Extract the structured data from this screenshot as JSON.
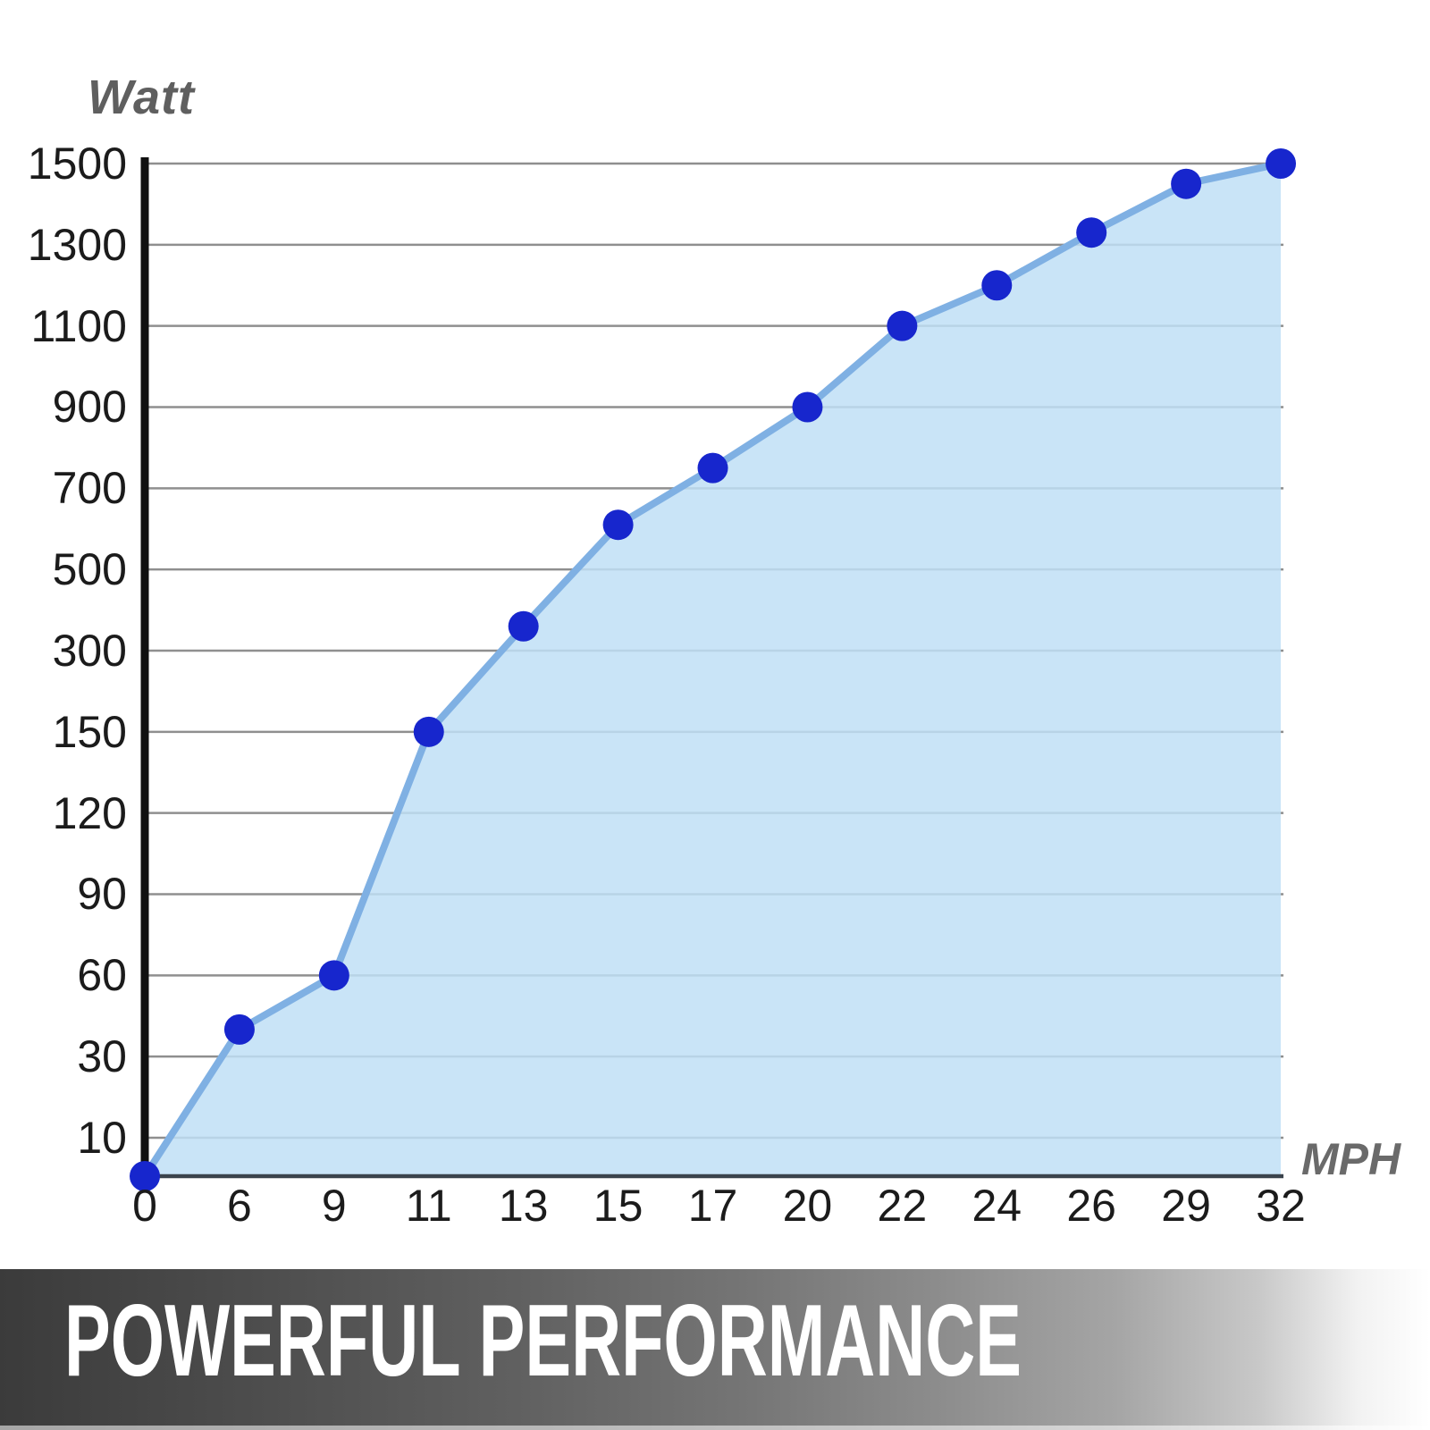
{
  "chart_data": {
    "type": "area",
    "title": "",
    "xlabel": "MPH",
    "ylabel": "Watt",
    "x_ticks": [
      "0",
      "6",
      "9",
      "11",
      "13",
      "15",
      "17",
      "20",
      "22",
      "24",
      "26",
      "29",
      "32"
    ],
    "y_ticks": [
      "1500",
      "1300",
      "1100",
      "900",
      "700",
      "500",
      "300",
      "150",
      "120",
      "90",
      "60",
      "30",
      "10"
    ],
    "points": [
      {
        "mph": 0,
        "watt": 0
      },
      {
        "mph": 6,
        "watt": 40
      },
      {
        "mph": 9,
        "watt": 60
      },
      {
        "mph": 11,
        "watt": 150
      },
      {
        "mph": 13,
        "watt": 360
      },
      {
        "mph": 15,
        "watt": 610
      },
      {
        "mph": 17,
        "watt": 750
      },
      {
        "mph": 20,
        "watt": 900
      },
      {
        "mph": 22,
        "watt": 1100
      },
      {
        "mph": 24,
        "watt": 1200
      },
      {
        "mph": 26,
        "watt": 1330
      },
      {
        "mph": 29,
        "watt": 1450
      },
      {
        "mph": 32,
        "watt": 1500
      }
    ],
    "layout_hints": {
      "grid": "horizontal gridlines only",
      "legend": "none",
      "y_scale": "ticks evenly spaced (non-linear value scale)"
    }
  },
  "banner": {
    "title": "POWERFUL PERFORMANCE"
  },
  "colors": {
    "line": "#7FB0E3",
    "area_fill": "#BFDFF6",
    "point": "#1726CD",
    "gridline": "#8F8F8F",
    "axis": "#101010",
    "baseline": "#3A434C",
    "axis_title_gray": "#5F5F5F",
    "tick_text": "#1B1B1B",
    "banner_text": "#FFFFFF"
  }
}
